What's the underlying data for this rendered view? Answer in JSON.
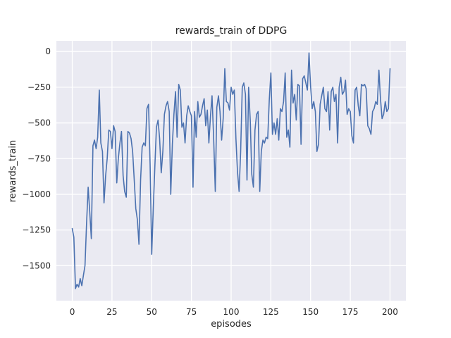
{
  "chart_data": {
    "type": "line",
    "title": "rewards_train of DDPG",
    "xlabel": "episodes",
    "ylabel": "rewards_train",
    "xlim": [
      -10,
      210
    ],
    "ylim": [
      -1745,
      75
    ],
    "x_ticks": [
      0,
      25,
      50,
      75,
      100,
      125,
      150,
      175,
      200
    ],
    "y_ticks": [
      0,
      -250,
      -500,
      -750,
      -1000,
      -1250,
      -1500
    ],
    "grid": true,
    "legend": "none",
    "x_is_index": true,
    "colors": {
      "plot_bg": "#eaeaf2",
      "grid": "#ffffff",
      "line": "#4c72b0",
      "text": "#262626"
    },
    "series": [
      {
        "name": "rewards_train",
        "color": "#4c72b0",
        "y": [
          -1240,
          -1300,
          -1660,
          -1630,
          -1650,
          -1590,
          -1640,
          -1570,
          -1500,
          -1210,
          -950,
          -1120,
          -1310,
          -660,
          -620,
          -680,
          -600,
          -270,
          -640,
          -700,
          -1060,
          -870,
          -750,
          -550,
          -560,
          -680,
          -520,
          -560,
          -920,
          -750,
          -640,
          -560,
          -870,
          -980,
          -1020,
          -560,
          -570,
          -610,
          -700,
          -900,
          -1100,
          -1180,
          -1350,
          -900,
          -670,
          -640,
          -660,
          -400,
          -370,
          -790,
          -1420,
          -1100,
          -800,
          -530,
          -480,
          -610,
          -850,
          -700,
          -440,
          -380,
          -350,
          -420,
          -1000,
          -650,
          -440,
          -280,
          -600,
          -230,
          -270,
          -530,
          -500,
          -640,
          -450,
          -380,
          -420,
          -450,
          -950,
          -420,
          -600,
          -350,
          -460,
          -440,
          -380,
          -330,
          -520,
          -410,
          -640,
          -450,
          -310,
          -610,
          -980,
          -390,
          -310,
          -420,
          -620,
          -470,
          -120,
          -350,
          -360,
          -410,
          -250,
          -300,
          -270,
          -610,
          -840,
          -980,
          -700,
          -250,
          -220,
          -300,
          -900,
          -250,
          -480,
          -860,
          -950,
          -550,
          -440,
          -420,
          -980,
          -700,
          -620,
          -640,
          -600,
          -610,
          -340,
          -150,
          -580,
          -500,
          -580,
          -470,
          -620,
          -400,
          -420,
          -350,
          -150,
          -600,
          -550,
          -670,
          -130,
          -360,
          -300,
          -480,
          -230,
          -240,
          -650,
          -190,
          -170,
          -220,
          -270,
          -10,
          -240,
          -400,
          -350,
          -420,
          -700,
          -650,
          -370,
          -310,
          -250,
          -400,
          -420,
          -280,
          -550,
          -280,
          -250,
          -350,
          -300,
          -640,
          -250,
          -180,
          -300,
          -280,
          -200,
          -440,
          -400,
          -420,
          -590,
          -640,
          -270,
          -250,
          -380,
          -450,
          -230,
          -240,
          -230,
          -260,
          -520,
          -540,
          -580,
          -420,
          -400,
          -350,
          -370,
          -130,
          -330,
          -470,
          -440,
          -350,
          -420,
          -400,
          -120
        ]
      }
    ]
  }
}
